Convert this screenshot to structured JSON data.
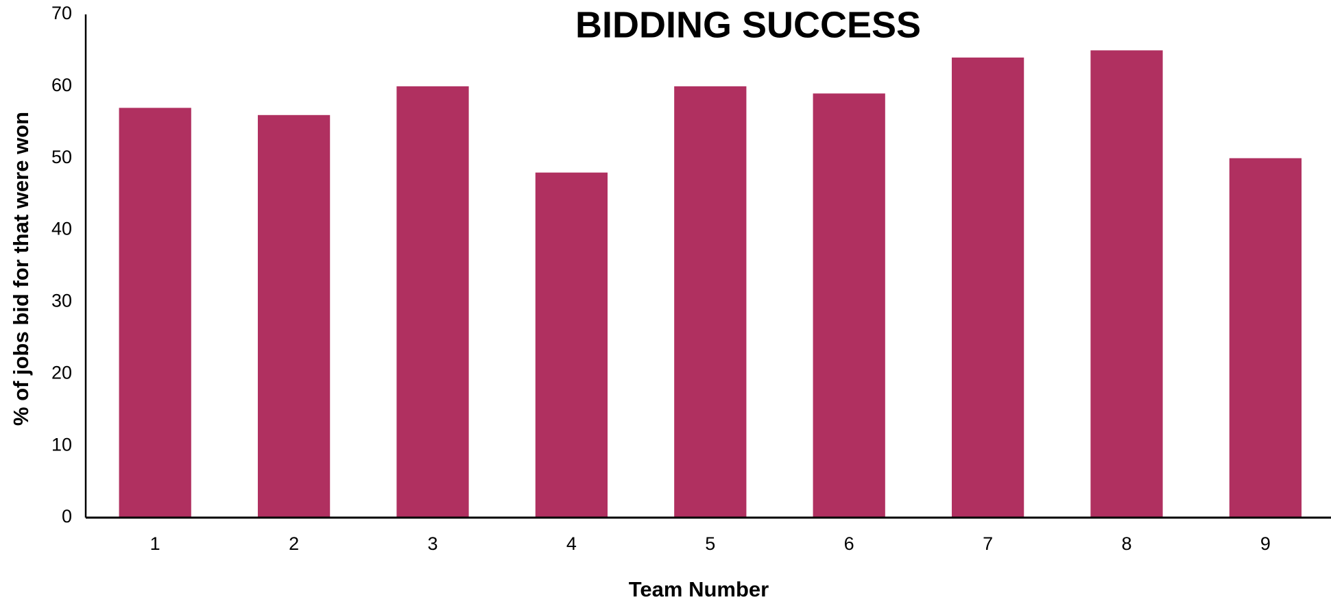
{
  "chart_data": {
    "type": "bar",
    "title": "BIDDING SUCCESS",
    "x_label": "Team Number",
    "y_label": "% of jobs bid for that were won",
    "categories": [
      "1",
      "2",
      "3",
      "4",
      "5",
      "6",
      "7",
      "8",
      "9"
    ],
    "values": [
      57,
      56,
      60,
      48,
      60,
      59,
      64,
      65,
      50
    ],
    "color": "#b03060",
    "ylim": [
      0,
      70
    ],
    "yticks": [
      0,
      10,
      20,
      30,
      40,
      50,
      60,
      70
    ],
    "grid": false
  }
}
